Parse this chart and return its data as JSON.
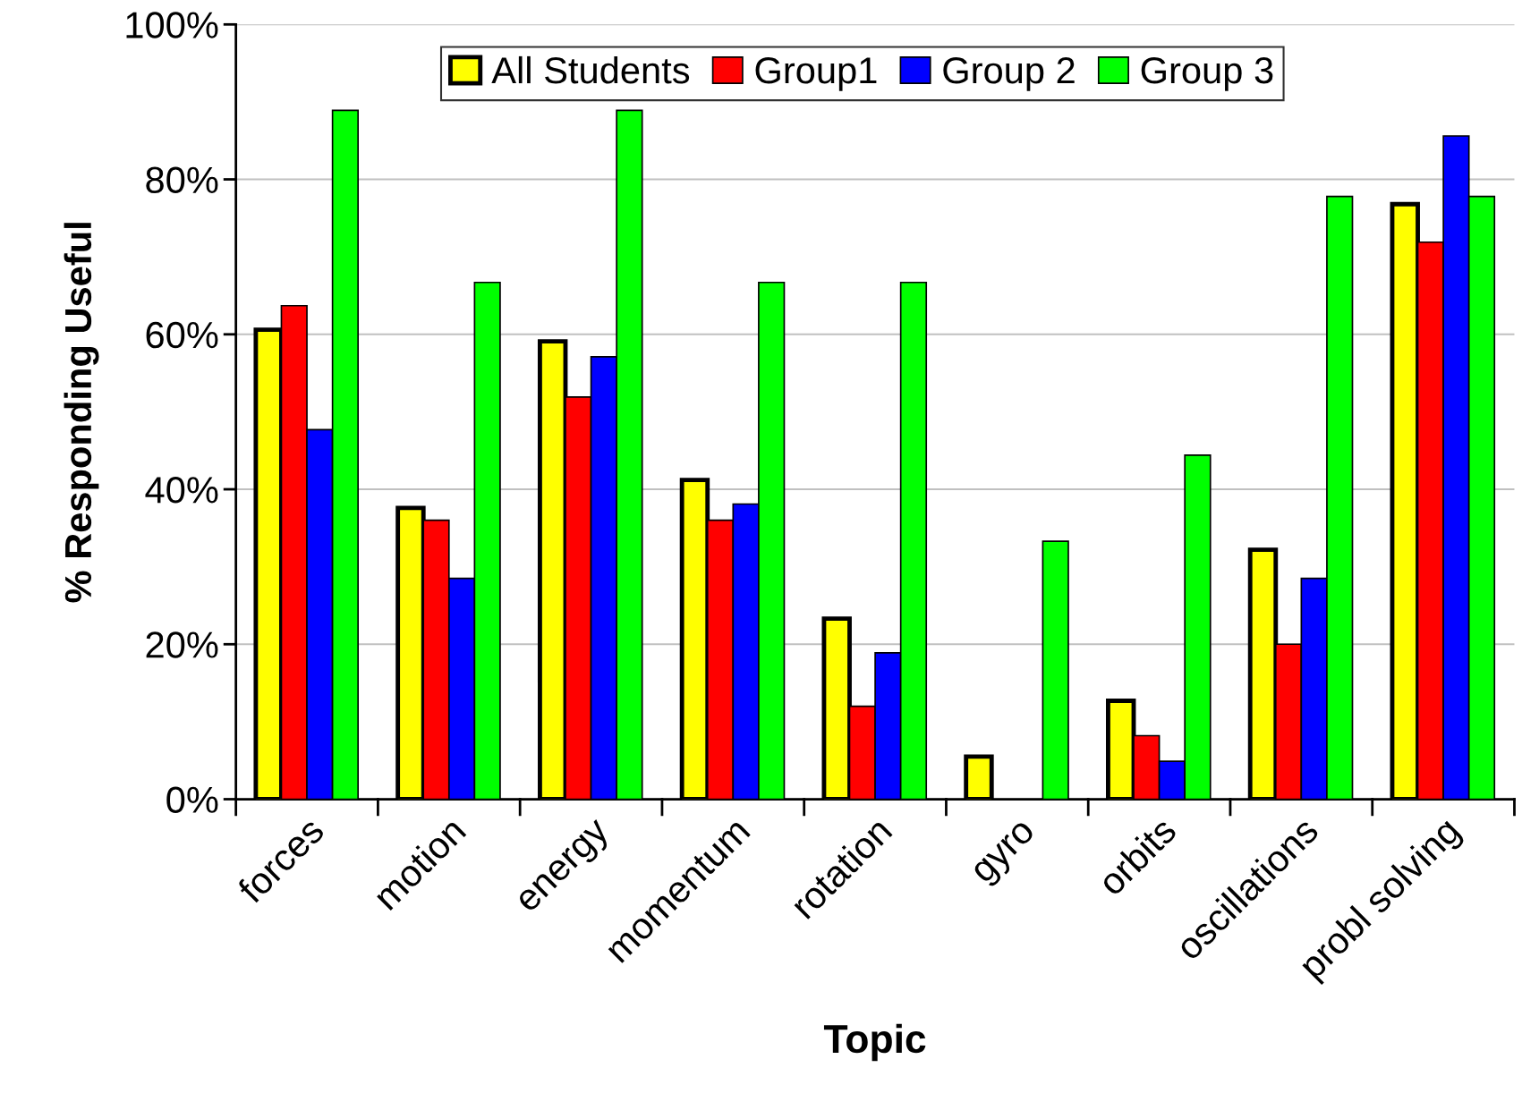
{
  "chart_data": {
    "type": "bar",
    "xlabel": "Topic",
    "ylabel": "% Responding Useful",
    "categories": [
      "forces",
      "motion",
      "energy",
      "momentum",
      "rotation",
      "gyro",
      "orbits",
      "oscillations",
      "probl solving"
    ],
    "series": [
      {
        "name": "All Students",
        "color": "#ffff00",
        "values": [
          60.6,
          37.6,
          59.1,
          41.2,
          23.3,
          5.5,
          12.7,
          32.2,
          76.8
        ]
      },
      {
        "name": "Group1",
        "color": "#ff0000",
        "values": [
          63.7,
          36.0,
          51.9,
          36.0,
          12.0,
          null,
          8.2,
          20.0,
          71.9
        ]
      },
      {
        "name": "Group 2",
        "color": "#0000ff",
        "values": [
          47.7,
          28.5,
          57.1,
          38.1,
          18.9,
          null,
          4.9,
          28.5,
          85.6
        ]
      },
      {
        "name": "Group 3",
        "color": "#00ff00",
        "values": [
          88.9,
          66.7,
          88.9,
          66.7,
          66.7,
          33.3,
          44.4,
          77.8,
          77.8
        ]
      }
    ],
    "ylim": [
      0,
      100
    ],
    "yticks": [
      {
        "value": 0,
        "label": "0%"
      },
      {
        "value": 20,
        "label": "20%"
      },
      {
        "value": 40,
        "label": "40%"
      },
      {
        "value": 60,
        "label": "60%"
      },
      {
        "value": 80,
        "label": "80%"
      },
      {
        "value": 100,
        "label": "100%"
      }
    ],
    "grid": "y",
    "legend": "top"
  }
}
